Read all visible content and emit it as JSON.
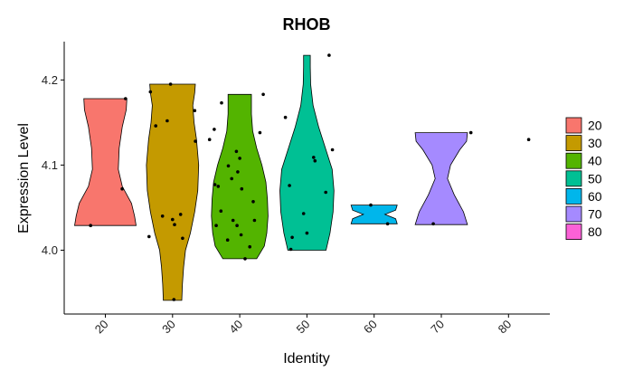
{
  "chart_data": {
    "type": "violin",
    "title": "RHOB",
    "xlabel": "Identity",
    "ylabel": "Expression Level",
    "categories": [
      "20",
      "30",
      "40",
      "50",
      "60",
      "70",
      "80"
    ],
    "ylim": [
      3.925,
      4.245
    ],
    "yticks": [
      4.0,
      4.1,
      4.2
    ],
    "ytick_labels": [
      "4.0",
      "4.1",
      "4.2"
    ],
    "grid": false,
    "legend_position": "right",
    "colors": {
      "20": "#F8766D",
      "30": "#C49A00",
      "40": "#53B400",
      "50": "#00C094",
      "60": "#00B6EB",
      "70": "#A58AFF",
      "80": "#FB61D7"
    },
    "violins": [
      {
        "category": "20",
        "min": 4.029,
        "max": 4.178,
        "profile": [
          [
            4.029,
            1.0
          ],
          [
            4.04,
            0.95
          ],
          [
            4.055,
            0.85
          ],
          [
            4.075,
            0.55
          ],
          [
            4.095,
            0.42
          ],
          [
            4.12,
            0.45
          ],
          [
            4.145,
            0.55
          ],
          [
            4.165,
            0.68
          ],
          [
            4.178,
            0.7
          ]
        ]
      },
      {
        "category": "30",
        "min": 3.941,
        "max": 4.195,
        "profile": [
          [
            3.941,
            0.3
          ],
          [
            3.96,
            0.32
          ],
          [
            3.98,
            0.36
          ],
          [
            4.0,
            0.42
          ],
          [
            4.02,
            0.58
          ],
          [
            4.045,
            0.72
          ],
          [
            4.07,
            0.82
          ],
          [
            4.1,
            0.85
          ],
          [
            4.13,
            0.78
          ],
          [
            4.15,
            0.7
          ],
          [
            4.17,
            0.66
          ],
          [
            4.185,
            0.72
          ],
          [
            4.195,
            0.74
          ]
        ]
      },
      {
        "category": "40",
        "min": 3.99,
        "max": 4.183,
        "profile": [
          [
            3.99,
            0.55
          ],
          [
            4.005,
            0.8
          ],
          [
            4.02,
            0.88
          ],
          [
            4.04,
            0.92
          ],
          [
            4.06,
            0.9
          ],
          [
            4.08,
            0.85
          ],
          [
            4.1,
            0.72
          ],
          [
            4.12,
            0.55
          ],
          [
            4.14,
            0.42
          ],
          [
            4.16,
            0.38
          ],
          [
            4.183,
            0.38
          ]
        ]
      },
      {
        "category": "50",
        "min": 4.0,
        "max": 4.229,
        "profile": [
          [
            4.0,
            0.62
          ],
          [
            4.02,
            0.75
          ],
          [
            4.045,
            0.85
          ],
          [
            4.07,
            0.88
          ],
          [
            4.095,
            0.82
          ],
          [
            4.12,
            0.6
          ],
          [
            4.145,
            0.38
          ],
          [
            4.17,
            0.2
          ],
          [
            4.195,
            0.12
          ],
          [
            4.215,
            0.11
          ],
          [
            4.229,
            0.11
          ]
        ]
      },
      {
        "category": "60",
        "min": 4.031,
        "max": 4.053,
        "profile": [
          [
            4.031,
            0.75
          ],
          [
            4.037,
            0.7
          ],
          [
            4.042,
            0.35
          ],
          [
            4.047,
            0.7
          ],
          [
            4.053,
            0.75
          ]
        ]
      },
      {
        "category": "70",
        "min": 4.03,
        "max": 4.138,
        "profile": [
          [
            4.03,
            0.85
          ],
          [
            4.045,
            0.72
          ],
          [
            4.065,
            0.42
          ],
          [
            4.084,
            0.2
          ],
          [
            4.1,
            0.3
          ],
          [
            4.118,
            0.6
          ],
          [
            4.128,
            0.82
          ],
          [
            4.138,
            0.85
          ]
        ]
      }
    ],
    "points": [
      {
        "category": "20",
        "dx": -0.22,
        "y": 4.029
      },
      {
        "category": "20",
        "dx": 0.25,
        "y": 4.072
      },
      {
        "category": "20",
        "dx": 0.3,
        "y": 4.178
      },
      {
        "category": "30",
        "dx": -0.35,
        "y": 4.016
      },
      {
        "category": "30",
        "dx": -0.33,
        "y": 4.186
      },
      {
        "category": "30",
        "dx": -0.25,
        "y": 4.146
      },
      {
        "category": "30",
        "dx": -0.15,
        "y": 4.04
      },
      {
        "category": "30",
        "dx": -0.08,
        "y": 4.152
      },
      {
        "category": "30",
        "dx": -0.03,
        "y": 4.195
      },
      {
        "category": "30",
        "dx": 0.0,
        "y": 4.036
      },
      {
        "category": "30",
        "dx": 0.02,
        "y": 3.942
      },
      {
        "category": "30",
        "dx": 0.03,
        "y": 4.03
      },
      {
        "category": "30",
        "dx": 0.12,
        "y": 4.042
      },
      {
        "category": "30",
        "dx": 0.15,
        "y": 4.014
      },
      {
        "category": "30",
        "dx": 0.33,
        "y": 4.164
      },
      {
        "category": "30",
        "dx": 0.34,
        "y": 4.128
      },
      {
        "category": "40",
        "dx": -0.45,
        "y": 4.13
      },
      {
        "category": "40",
        "dx": -0.38,
        "y": 4.142
      },
      {
        "category": "40",
        "dx": -0.37,
        "y": 4.077
      },
      {
        "category": "40",
        "dx": -0.35,
        "y": 4.029
      },
      {
        "category": "40",
        "dx": -0.32,
        "y": 4.075
      },
      {
        "category": "40",
        "dx": -0.28,
        "y": 4.046
      },
      {
        "category": "40",
        "dx": -0.27,
        "y": 4.173
      },
      {
        "category": "40",
        "dx": -0.18,
        "y": 4.012
      },
      {
        "category": "40",
        "dx": -0.17,
        "y": 4.099
      },
      {
        "category": "40",
        "dx": -0.12,
        "y": 4.084
      },
      {
        "category": "40",
        "dx": -0.1,
        "y": 4.035
      },
      {
        "category": "40",
        "dx": -0.05,
        "y": 4.116
      },
      {
        "category": "40",
        "dx": -0.04,
        "y": 4.029
      },
      {
        "category": "40",
        "dx": -0.03,
        "y": 4.092
      },
      {
        "category": "40",
        "dx": 0.0,
        "y": 4.108
      },
      {
        "category": "40",
        "dx": 0.02,
        "y": 4.018
      },
      {
        "category": "40",
        "dx": 0.03,
        "y": 4.072
      },
      {
        "category": "40",
        "dx": 0.08,
        "y": 3.99
      },
      {
        "category": "40",
        "dx": 0.15,
        "y": 4.004
      },
      {
        "category": "40",
        "dx": 0.2,
        "y": 4.057
      },
      {
        "category": "40",
        "dx": 0.22,
        "y": 4.035
      },
      {
        "category": "40",
        "dx": 0.3,
        "y": 4.138
      },
      {
        "category": "40",
        "dx": 0.35,
        "y": 4.183
      },
      {
        "category": "50",
        "dx": -0.32,
        "y": 4.156
      },
      {
        "category": "50",
        "dx": -0.26,
        "y": 4.076
      },
      {
        "category": "50",
        "dx": -0.24,
        "y": 4.001
      },
      {
        "category": "50",
        "dx": -0.22,
        "y": 4.015
      },
      {
        "category": "50",
        "dx": -0.05,
        "y": 4.043
      },
      {
        "category": "50",
        "dx": 0.0,
        "y": 4.02
      },
      {
        "category": "50",
        "dx": 0.1,
        "y": 4.109
      },
      {
        "category": "50",
        "dx": 0.12,
        "y": 4.105
      },
      {
        "category": "50",
        "dx": 0.28,
        "y": 4.068
      },
      {
        "category": "50",
        "dx": 0.33,
        "y": 4.229
      },
      {
        "category": "50",
        "dx": 0.38,
        "y": 4.118
      },
      {
        "category": "60",
        "dx": -0.05,
        "y": 4.053
      },
      {
        "category": "60",
        "dx": 0.2,
        "y": 4.031
      },
      {
        "category": "70",
        "dx": -0.12,
        "y": 4.031
      },
      {
        "category": "70",
        "dx": 0.44,
        "y": 4.138
      },
      {
        "category": "80",
        "dx": 0.3,
        "y": 4.13
      }
    ]
  }
}
